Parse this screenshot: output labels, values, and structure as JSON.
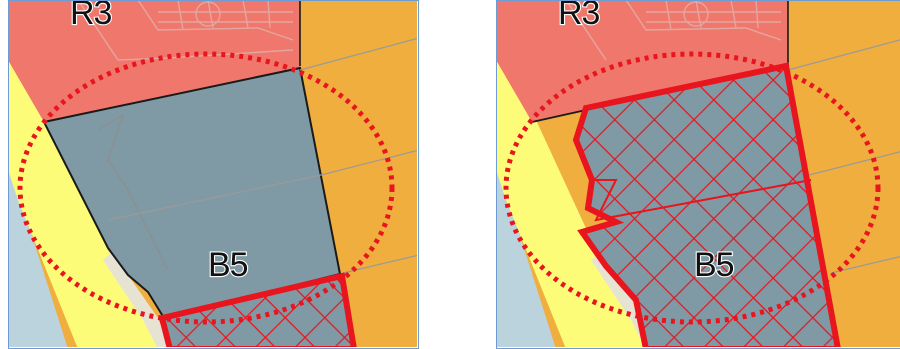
{
  "panels": [
    {
      "id": "left",
      "labels": {
        "top_zone": "R3",
        "center_zone": "B5"
      },
      "hatch_extent": "bottom-only",
      "emphasis": "dotted-ellipse"
    },
    {
      "id": "right",
      "labels": {
        "top_zone": "R3",
        "center_zone": "B5"
      },
      "hatch_extent": "full-parcel",
      "emphasis": "dotted-ellipse"
    }
  ],
  "colors": {
    "residential_zone": "#f0776b",
    "commercial_zone": "#7f9aa4",
    "orange_zone": "#efae3e",
    "yellow_strip": "#fdfc78",
    "water": "#bad3dc",
    "road": "#e7e3d3",
    "highlight_red": "#e8141e",
    "frame_blue": "#6f9bd4"
  }
}
